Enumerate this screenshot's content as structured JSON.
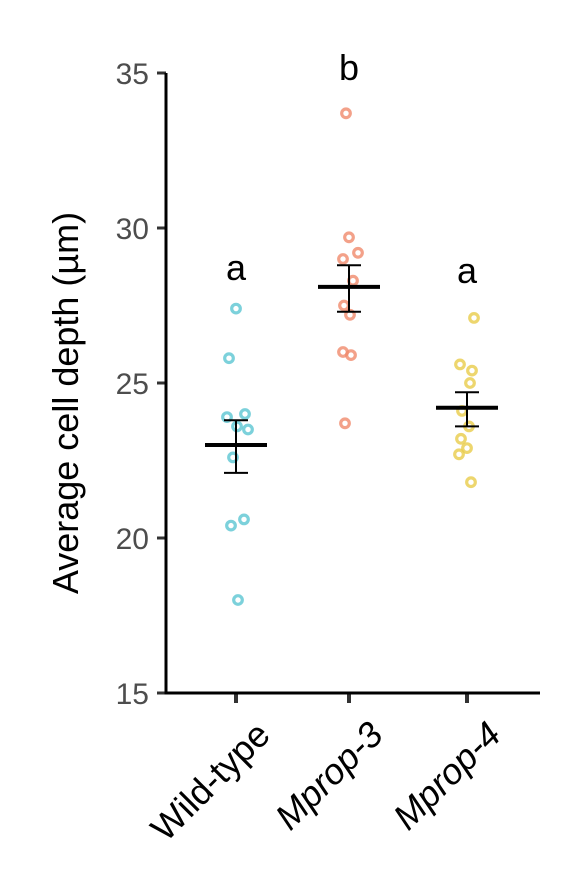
{
  "chart_data": {
    "type": "scatter",
    "title": "",
    "xlabel": "",
    "ylabel": "Average cell depth (µm)",
    "ylim": [
      15,
      35
    ],
    "yticks": [
      15,
      20,
      25,
      30,
      35
    ],
    "grid": false,
    "legend": "none",
    "categories": [
      "Wild-type",
      "Mprop-3",
      "Mprop-4"
    ],
    "category_style": [
      "normal",
      "italic",
      "italic"
    ],
    "series": [
      {
        "category": "Wild-type",
        "color": "#5bc5d2",
        "points": [
          27.4,
          25.8,
          24.0,
          23.9,
          23.6,
          23.5,
          22.6,
          20.6,
          20.4,
          18.0
        ],
        "mean": 23.0,
        "sem_low": 22.1,
        "sem_high": 23.8,
        "significance": "a"
      },
      {
        "category": "Mprop-3",
        "color": "#f08a6c",
        "points": [
          33.7,
          29.7,
          29.2,
          29.0,
          28.3,
          27.5,
          27.2,
          26.0,
          25.9,
          23.7
        ],
        "mean": 28.1,
        "sem_low": 27.3,
        "sem_high": 28.8,
        "significance": "b"
      },
      {
        "category": "Mprop-4",
        "color": "#e8cc4a",
        "points": [
          27.1,
          25.6,
          25.4,
          25.0,
          24.1,
          23.6,
          23.2,
          22.9,
          22.7,
          21.8
        ],
        "mean": 24.2,
        "sem_low": 23.6,
        "sem_high": 24.7,
        "significance": "a"
      }
    ]
  }
}
